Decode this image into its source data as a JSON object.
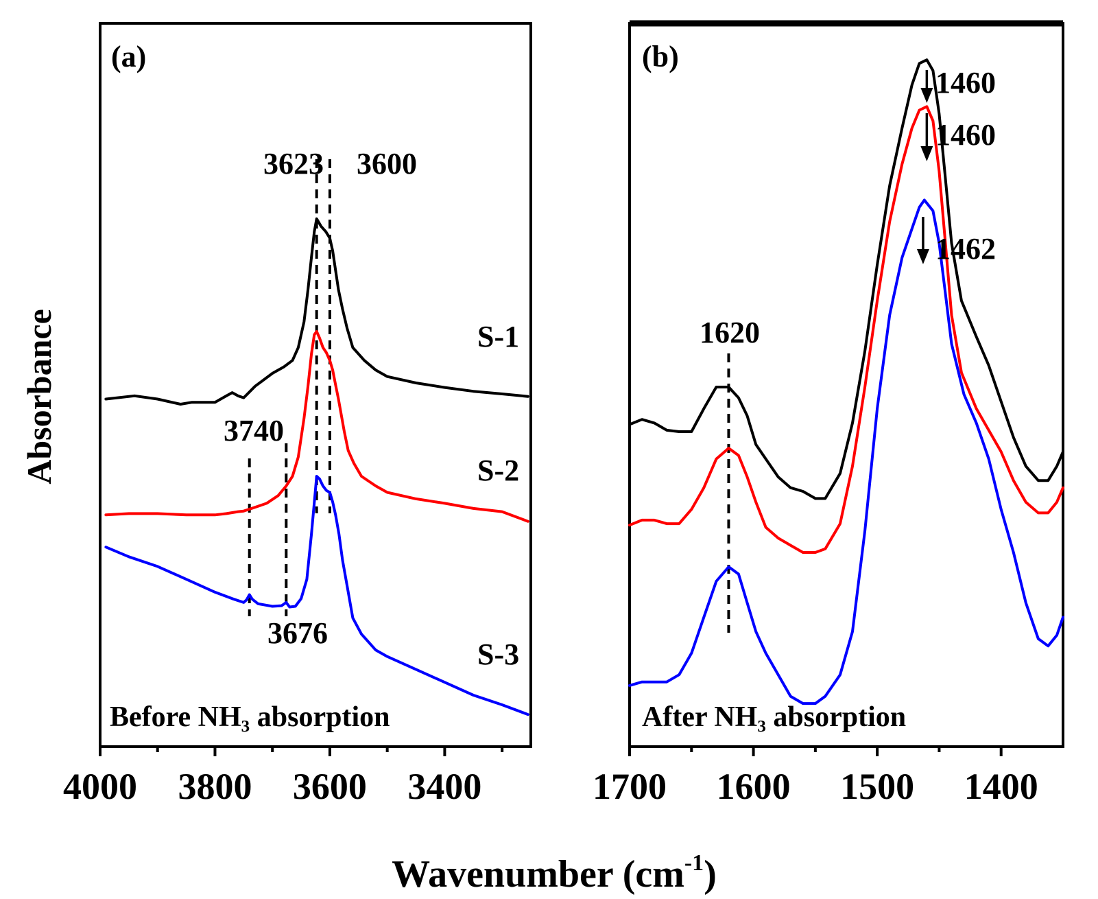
{
  "chart_data": [
    {
      "type": "line",
      "panel_label": "(a)",
      "annotation": "Before NH₃ absorption",
      "xlabel": "Wavenumber (cm-1)",
      "ylabel": "Absorbance",
      "xlim": [
        4000,
        3250
      ],
      "x_reversed": true,
      "ylim": [
        0,
        1
      ],
      "y_tick_labels_shown": false,
      "xticks": [
        4000,
        3800,
        3600,
        3400
      ],
      "xtick_labels": [
        "4000",
        "3800",
        "3600",
        "3400"
      ],
      "colors": {
        "S-1": "#000000",
        "S-2": "#ff0000",
        "S-3": "#0000ff"
      },
      "series": [
        {
          "name": "S-1",
          "x": [
            3990,
            3940,
            3900,
            3860,
            3840,
            3800,
            3780,
            3770,
            3760,
            3750,
            3730,
            3700,
            3680,
            3665,
            3655,
            3645,
            3638,
            3632,
            3627,
            3623,
            3615,
            3607,
            3600,
            3595,
            3590,
            3585,
            3578,
            3570,
            3560,
            3540,
            3520,
            3500,
            3450,
            3400,
            3350,
            3300,
            3255
          ],
          "y": [
            0.54,
            0.545,
            0.54,
            0.532,
            0.535,
            0.535,
            0.545,
            0.55,
            0.545,
            0.542,
            0.56,
            0.58,
            0.59,
            0.6,
            0.62,
            0.66,
            0.71,
            0.76,
            0.8,
            0.82,
            0.808,
            0.8,
            0.79,
            0.77,
            0.74,
            0.71,
            0.68,
            0.65,
            0.62,
            0.6,
            0.585,
            0.575,
            0.565,
            0.558,
            0.552,
            0.548,
            0.544
          ]
        },
        {
          "name": "S-2",
          "x": [
            3990,
            3950,
            3900,
            3850,
            3800,
            3780,
            3760,
            3750,
            3730,
            3710,
            3690,
            3676,
            3665,
            3655,
            3645,
            3638,
            3632,
            3627,
            3623,
            3618,
            3612,
            3606,
            3600,
            3595,
            3590,
            3585,
            3580,
            3575,
            3568,
            3558,
            3545,
            3520,
            3500,
            3450,
            3400,
            3350,
            3300,
            3255
          ],
          "y": [
            0.36,
            0.362,
            0.362,
            0.36,
            0.36,
            0.362,
            0.365,
            0.366,
            0.372,
            0.378,
            0.39,
            0.405,
            0.42,
            0.45,
            0.51,
            0.56,
            0.61,
            0.64,
            0.645,
            0.635,
            0.62,
            0.612,
            0.6,
            0.585,
            0.562,
            0.54,
            0.515,
            0.49,
            0.46,
            0.44,
            0.42,
            0.405,
            0.395,
            0.385,
            0.378,
            0.37,
            0.365,
            0.35
          ]
        },
        {
          "name": "S-3",
          "x": [
            3990,
            3950,
            3900,
            3850,
            3800,
            3770,
            3750,
            3745,
            3740,
            3735,
            3725,
            3700,
            3684,
            3676,
            3670,
            3660,
            3650,
            3640,
            3632,
            3626,
            3623,
            3618,
            3612,
            3606,
            3600,
            3595,
            3590,
            3584,
            3578,
            3570,
            3560,
            3545,
            3520,
            3500,
            3450,
            3400,
            3350,
            3300,
            3255
          ],
          "y": [
            0.31,
            0.295,
            0.28,
            0.26,
            0.24,
            0.23,
            0.224,
            0.228,
            0.236,
            0.229,
            0.222,
            0.218,
            0.219,
            0.224,
            0.217,
            0.218,
            0.23,
            0.26,
            0.33,
            0.39,
            0.42,
            0.416,
            0.405,
            0.398,
            0.395,
            0.38,
            0.36,
            0.33,
            0.29,
            0.25,
            0.2,
            0.175,
            0.15,
            0.14,
            0.12,
            0.1,
            0.08,
            0.065,
            0.05
          ]
        }
      ],
      "peak_labels": [
        {
          "text": "3623",
          "x": 3623
        },
        {
          "text": "3600",
          "x": 3600
        },
        {
          "text": "3740",
          "x": 3740
        },
        {
          "text": "3676",
          "x": 3676
        }
      ],
      "series_labels": [
        "S-1",
        "S-2",
        "S-3"
      ]
    },
    {
      "type": "line",
      "panel_label": "(b)",
      "annotation": "After NH₃ absorption",
      "xlabel": "Wavenumber (cm-1)",
      "ylabel": "Absorbance",
      "xlim": [
        1700,
        1350
      ],
      "x_reversed": true,
      "ylim": [
        0,
        1
      ],
      "y_tick_labels_shown": false,
      "xticks": [
        1700,
        1600,
        1500,
        1400
      ],
      "xtick_labels": [
        "1700",
        "1600",
        "1500",
        "1400"
      ],
      "colors": {
        "S-1": "#000000",
        "S-2": "#ff0000",
        "S-3": "#0000ff"
      },
      "series": [
        {
          "name": "S-1",
          "x": [
            1700,
            1690,
            1680,
            1670,
            1660,
            1650,
            1640,
            1630,
            1620,
            1612,
            1605,
            1598,
            1590,
            1580,
            1570,
            1560,
            1550,
            1542,
            1530,
            1520,
            1510,
            1500,
            1490,
            1480,
            1472,
            1466,
            1460,
            1455,
            1450,
            1445,
            1440,
            1432,
            1420,
            1410,
            1400,
            1390,
            1380,
            1370,
            1362,
            1355,
            1350
          ],
          "y": [
            0.448,
            0.455,
            0.45,
            0.44,
            0.438,
            0.438,
            0.47,
            0.5,
            0.5,
            0.485,
            0.46,
            0.42,
            0.4,
            0.375,
            0.36,
            0.355,
            0.345,
            0.345,
            0.38,
            0.45,
            0.55,
            0.67,
            0.78,
            0.86,
            0.92,
            0.95,
            0.955,
            0.94,
            0.88,
            0.79,
            0.7,
            0.62,
            0.57,
            0.53,
            0.48,
            0.43,
            0.39,
            0.37,
            0.37,
            0.39,
            0.41
          ]
        },
        {
          "name": "S-2",
          "x": [
            1700,
            1690,
            1680,
            1670,
            1660,
            1650,
            1640,
            1630,
            1620,
            1612,
            1605,
            1598,
            1590,
            1580,
            1570,
            1560,
            1550,
            1542,
            1530,
            1520,
            1510,
            1500,
            1490,
            1480,
            1472,
            1466,
            1460,
            1455,
            1450,
            1445,
            1440,
            1432,
            1420,
            1410,
            1400,
            1390,
            1380,
            1370,
            1362,
            1355,
            1350
          ],
          "y": [
            0.308,
            0.315,
            0.315,
            0.31,
            0.31,
            0.33,
            0.36,
            0.4,
            0.415,
            0.405,
            0.375,
            0.34,
            0.305,
            0.29,
            0.28,
            0.27,
            0.27,
            0.275,
            0.31,
            0.39,
            0.5,
            0.62,
            0.73,
            0.81,
            0.86,
            0.885,
            0.89,
            0.87,
            0.8,
            0.7,
            0.6,
            0.52,
            0.47,
            0.44,
            0.41,
            0.37,
            0.34,
            0.325,
            0.325,
            0.34,
            0.36
          ]
        },
        {
          "name": "S-3",
          "x": [
            1700,
            1690,
            1680,
            1670,
            1660,
            1650,
            1640,
            1630,
            1620,
            1612,
            1605,
            1598,
            1590,
            1580,
            1570,
            1560,
            1550,
            1542,
            1530,
            1520,
            1510,
            1500,
            1490,
            1480,
            1472,
            1466,
            1462,
            1455,
            1450,
            1445,
            1440,
            1430,
            1420,
            1410,
            1400,
            1390,
            1380,
            1370,
            1362,
            1355,
            1350
          ],
          "y": [
            0.085,
            0.09,
            0.09,
            0.09,
            0.1,
            0.13,
            0.18,
            0.23,
            0.25,
            0.24,
            0.2,
            0.16,
            0.13,
            0.1,
            0.07,
            0.06,
            0.06,
            0.07,
            0.1,
            0.16,
            0.3,
            0.47,
            0.6,
            0.68,
            0.72,
            0.75,
            0.76,
            0.745,
            0.7,
            0.63,
            0.56,
            0.49,
            0.45,
            0.4,
            0.33,
            0.27,
            0.2,
            0.15,
            0.14,
            0.155,
            0.18
          ]
        }
      ],
      "peak_labels": [
        {
          "text": "1620",
          "x": 1620
        },
        {
          "text": "1460",
          "x": 1460
        },
        {
          "text": "1460",
          "x": 1460
        },
        {
          "text": "1462",
          "x": 1462
        }
      ]
    }
  ],
  "axis": {
    "ylabel": "Absorbance",
    "xlabel_main": "Wavenumber (cm",
    "xlabel_sup": "-1",
    "xlabel_close": ")"
  }
}
